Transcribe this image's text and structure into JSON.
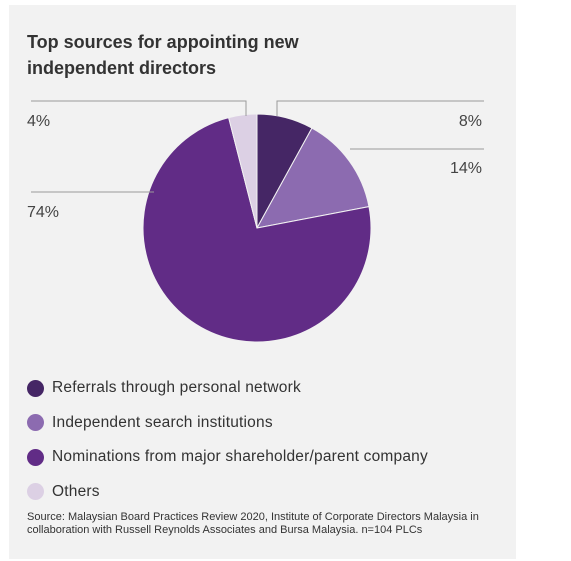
{
  "title": "Top sources for appointing new independent directors",
  "chart_data": {
    "type": "pie",
    "title": "Top sources for appointing new independent directors",
    "slices": [
      {
        "label": "Referrals through personal network",
        "value": 8,
        "display": "8%",
        "color": "#452665"
      },
      {
        "label": "Independent search institutions",
        "value": 14,
        "display": "14%",
        "color": "#8c6bb0"
      },
      {
        "label": "Nominations from major shareholder/parent company",
        "value": 74,
        "display": "74%",
        "color": "#612c86"
      },
      {
        "label": "Others",
        "value": 4,
        "display": "4%",
        "color": "#dcd0e4"
      }
    ],
    "legend_position": "bottom"
  },
  "source": "Source: Malaysian Board Practices Review 2020, Institute of Corporate Directors Malaysia in collaboration with Russell Reynolds Associates and Bursa Malaysia. n=104 PLCs"
}
